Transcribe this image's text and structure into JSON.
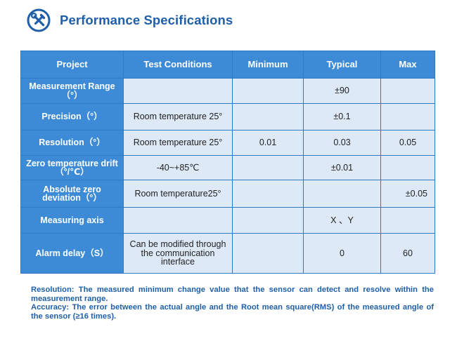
{
  "header": {
    "icon": "tools-icon",
    "title": "Performance Specifications"
  },
  "colors": {
    "brand_blue": "#1f5fa8",
    "header_fill": "#3d8bd6",
    "cell_fill": "#dde9f7",
    "border": "#2f79c3"
  },
  "table": {
    "columns": [
      "Project",
      "Test Conditions",
      "Minimum",
      "Typical",
      "Max"
    ],
    "rows": [
      {
        "project": "Measurement Range（°）",
        "conditions": "",
        "minimum": "",
        "typical": "±90",
        "max": ""
      },
      {
        "project": "Precision（°）",
        "conditions": "Room temperature 25°",
        "minimum": "",
        "typical": "±0.1",
        "max": ""
      },
      {
        "project": "Resolution（°）",
        "conditions": "Room temperature 25°",
        "minimum": "0.01",
        "typical": "0.03",
        "max": "0.05"
      },
      {
        "project": "Zero temperature drift（°/℃）",
        "conditions": "-40~+85℃",
        "minimum": "",
        "typical": "±0.01",
        "max": ""
      },
      {
        "project": "Absolute zero deviation（°）",
        "conditions": "Room temperature25°",
        "minimum": "",
        "typical": "",
        "max": "±0.05"
      },
      {
        "project": "Measuring axis",
        "conditions": "",
        "minimum": "",
        "typical": "X 、Y",
        "max": ""
      },
      {
        "project": "Alarm delay（S）",
        "conditions": "Can be modified through the communication interface",
        "minimum": "",
        "typical": "0",
        "max": "60"
      }
    ]
  },
  "notes": {
    "resolution": "Resolution: The measured minimum change value that the sensor can detect and resolve within the measurement range.",
    "accuracy": "Accuracy: The error between the actual angle and the Root mean square(RMS) of the measured angle of the sensor (≥16 times)."
  }
}
